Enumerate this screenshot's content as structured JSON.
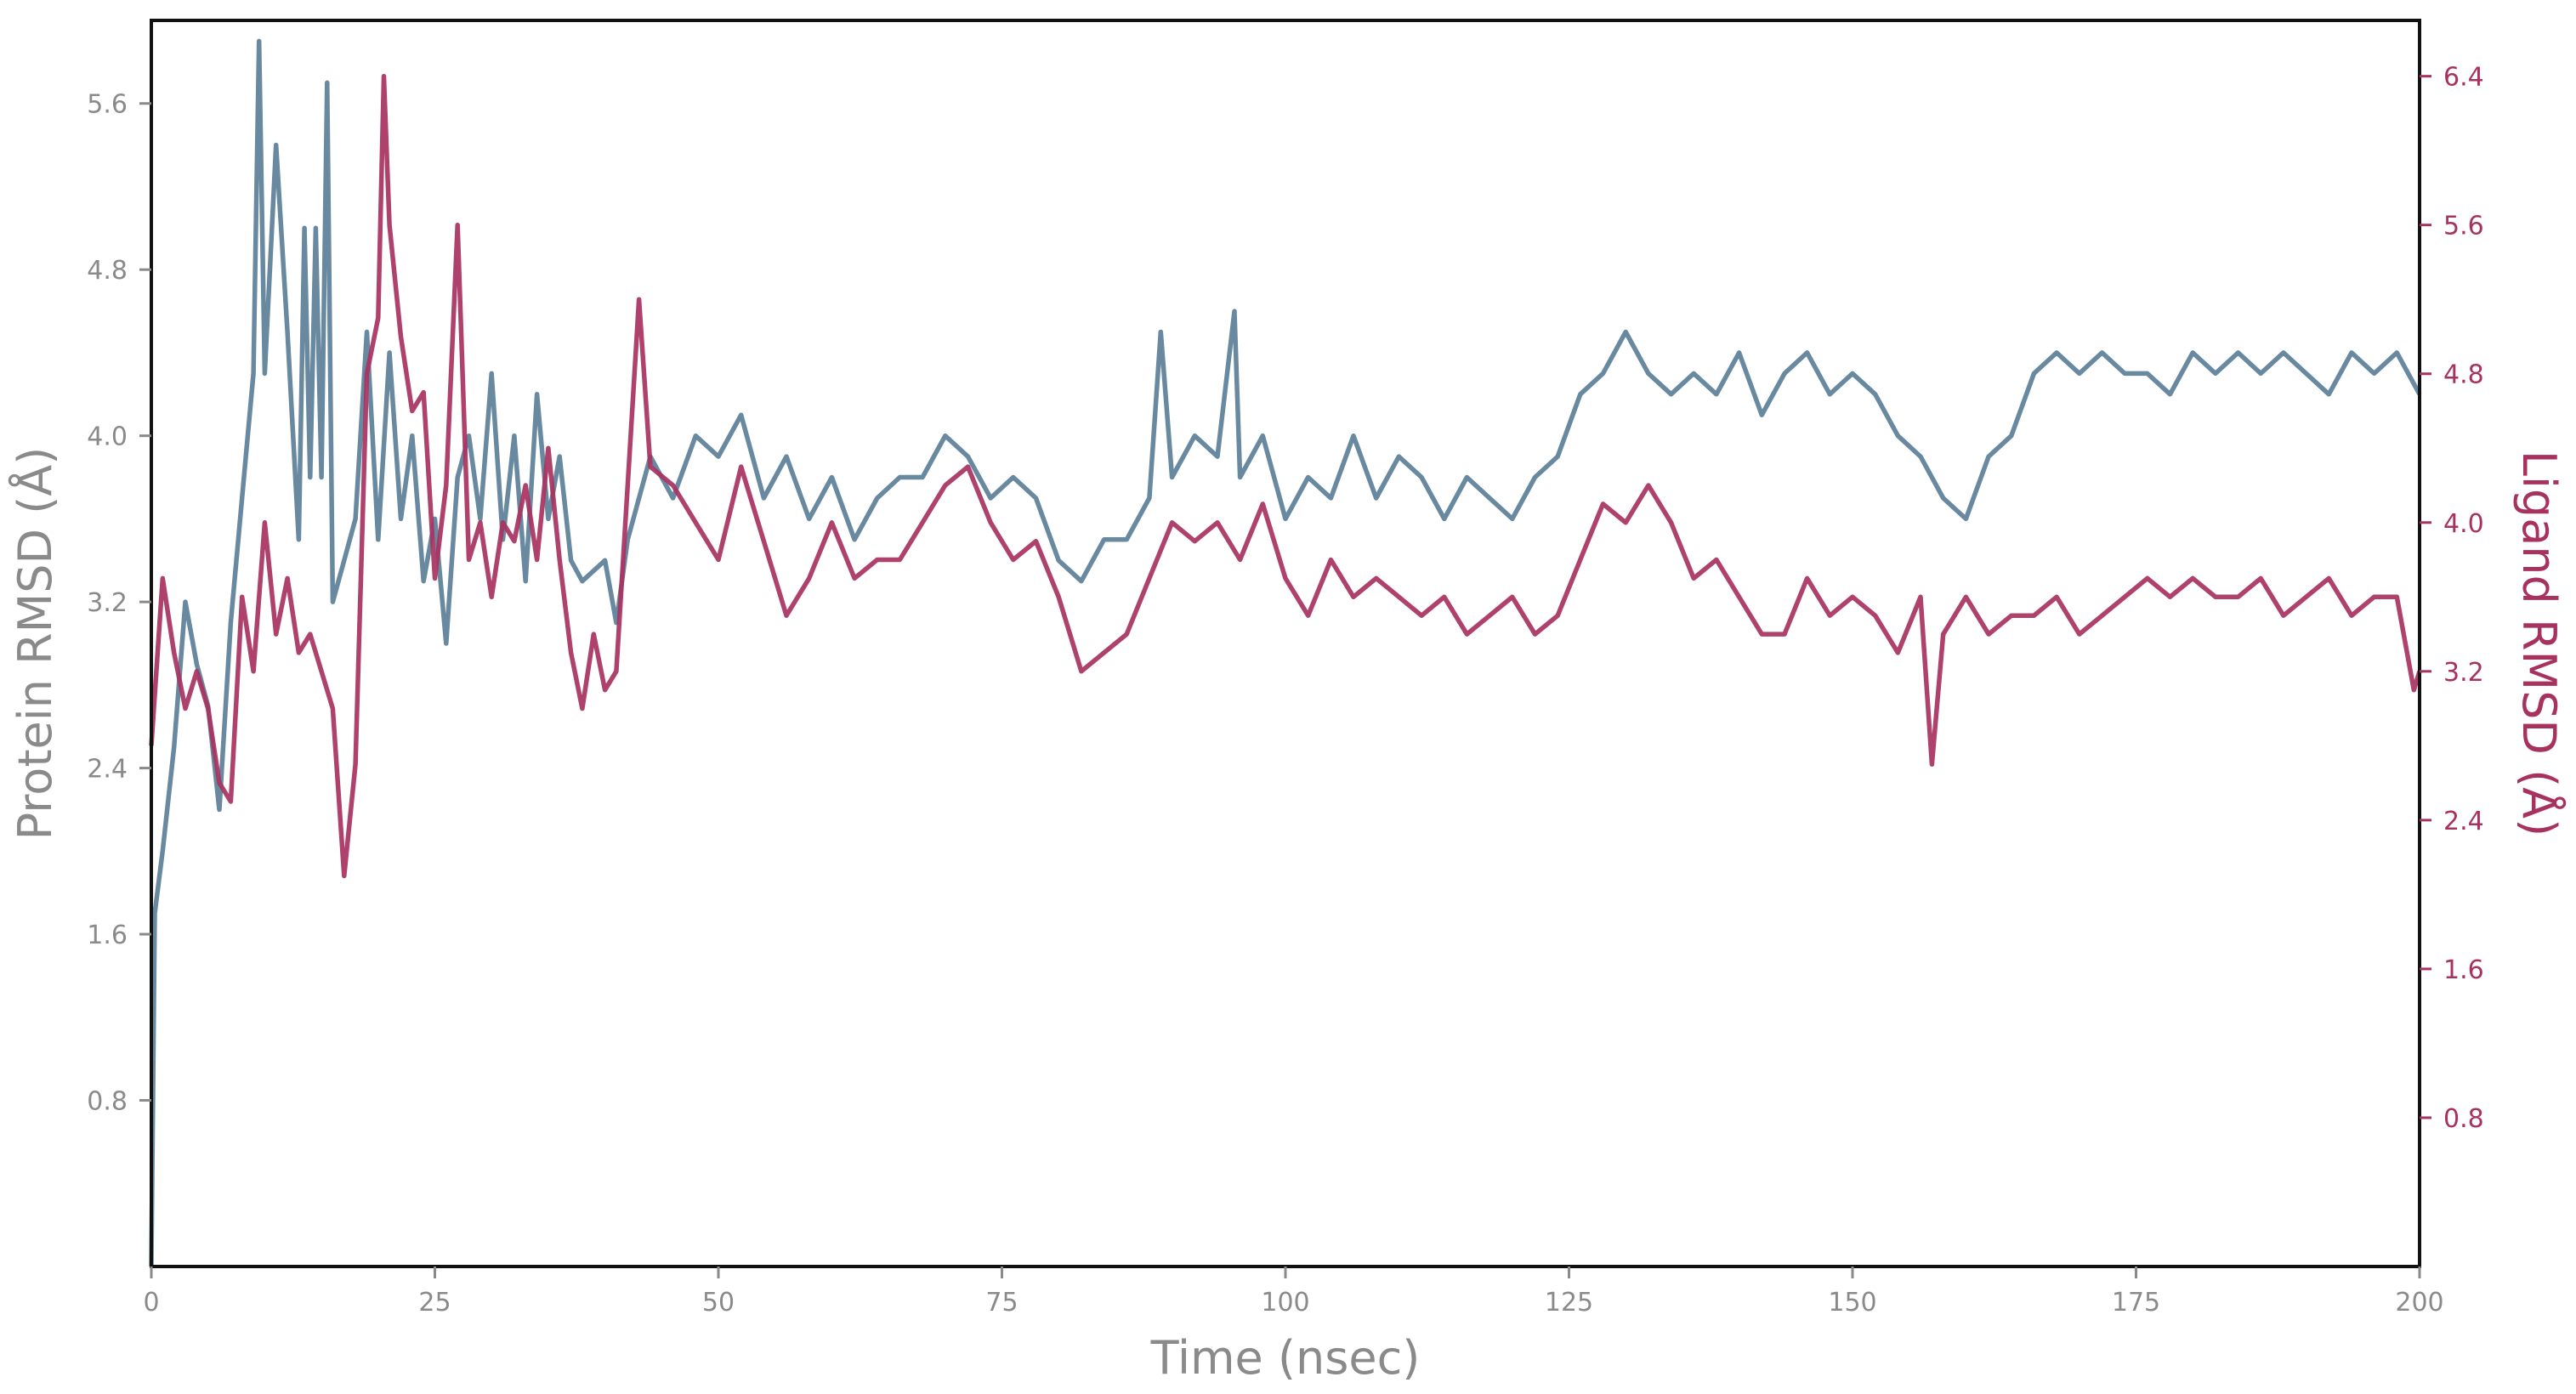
{
  "chart_data": {
    "type": "line",
    "x": {
      "label": "Time (nsec)",
      "range": [
        0,
        200
      ],
      "ticks": [
        0,
        25,
        50,
        75,
        100,
        125,
        150,
        175,
        200
      ],
      "tick_labels": [
        "0",
        "25",
        "50",
        "75",
        "100",
        "125",
        "150",
        "175",
        "200"
      ]
    },
    "y_left": {
      "label": "Protein RMSD (Å)",
      "range": [
        0,
        6.0
      ],
      "ticks": [
        0.8,
        1.6,
        2.4,
        3.2,
        4.0,
        4.8,
        5.6
      ],
      "tick_labels": [
        "0.8",
        "1.6",
        "2.4",
        "3.2",
        "4.0",
        "4.8",
        "5.6"
      ]
    },
    "y_right": {
      "label": "Ligand RMSD (Å)",
      "range": [
        0,
        6.7
      ],
      "ticks": [
        0.8,
        1.6,
        2.4,
        3.2,
        4.0,
        4.8,
        5.6,
        6.4
      ],
      "tick_labels": [
        "0.8",
        "1.6",
        "2.4",
        "3.2",
        "4.0",
        "4.8",
        "5.6",
        "6.4"
      ]
    },
    "grid": false,
    "legend": "none",
    "series": [
      {
        "axis": "left",
        "color": "#5b7f98",
        "points": [
          [
            0,
            0.0
          ],
          [
            0.3,
            1.7
          ],
          [
            1,
            2.0
          ],
          [
            2,
            2.5
          ],
          [
            3,
            3.2
          ],
          [
            4,
            2.9
          ],
          [
            5,
            2.7
          ],
          [
            6,
            2.2
          ],
          [
            7,
            3.1
          ],
          [
            8,
            3.7
          ],
          [
            9,
            4.3
          ],
          [
            9.5,
            5.9
          ],
          [
            10,
            4.3
          ],
          [
            11,
            5.4
          ],
          [
            12,
            4.5
          ],
          [
            13,
            3.5
          ],
          [
            13.5,
            5.0
          ],
          [
            14,
            3.8
          ],
          [
            14.5,
            5.0
          ],
          [
            15,
            3.8
          ],
          [
            15.5,
            5.7
          ],
          [
            16,
            3.2
          ],
          [
            17,
            3.4
          ],
          [
            18,
            3.6
          ],
          [
            19,
            4.5
          ],
          [
            20,
            3.5
          ],
          [
            21,
            4.4
          ],
          [
            22,
            3.6
          ],
          [
            23,
            4.0
          ],
          [
            24,
            3.3
          ],
          [
            25,
            3.6
          ],
          [
            26,
            3.0
          ],
          [
            27,
            3.8
          ],
          [
            28,
            4.0
          ],
          [
            29,
            3.6
          ],
          [
            30,
            4.3
          ],
          [
            31,
            3.5
          ],
          [
            32,
            4.0
          ],
          [
            33,
            3.3
          ],
          [
            34,
            4.2
          ],
          [
            35,
            3.6
          ],
          [
            36,
            3.9
          ],
          [
            37,
            3.4
          ],
          [
            38,
            3.3
          ],
          [
            40,
            3.4
          ],
          [
            41,
            3.1
          ],
          [
            42,
            3.5
          ],
          [
            44,
            3.9
          ],
          [
            46,
            3.7
          ],
          [
            48,
            4.0
          ],
          [
            50,
            3.9
          ],
          [
            52,
            4.1
          ],
          [
            54,
            3.7
          ],
          [
            56,
            3.9
          ],
          [
            58,
            3.6
          ],
          [
            60,
            3.8
          ],
          [
            62,
            3.5
          ],
          [
            64,
            3.7
          ],
          [
            66,
            3.8
          ],
          [
            68,
            3.8
          ],
          [
            70,
            4.0
          ],
          [
            72,
            3.9
          ],
          [
            74,
            3.7
          ],
          [
            76,
            3.8
          ],
          [
            78,
            3.7
          ],
          [
            80,
            3.4
          ],
          [
            82,
            3.3
          ],
          [
            84,
            3.5
          ],
          [
            86,
            3.5
          ],
          [
            88,
            3.7
          ],
          [
            89,
            4.5
          ],
          [
            90,
            3.8
          ],
          [
            92,
            4.0
          ],
          [
            94,
            3.9
          ],
          [
            95.5,
            4.6
          ],
          [
            96,
            3.8
          ],
          [
            98,
            4.0
          ],
          [
            100,
            3.6
          ],
          [
            102,
            3.8
          ],
          [
            104,
            3.7
          ],
          [
            106,
            4.0
          ],
          [
            108,
            3.7
          ],
          [
            110,
            3.9
          ],
          [
            112,
            3.8
          ],
          [
            114,
            3.6
          ],
          [
            116,
            3.8
          ],
          [
            118,
            3.7
          ],
          [
            120,
            3.6
          ],
          [
            122,
            3.8
          ],
          [
            124,
            3.9
          ],
          [
            126,
            4.2
          ],
          [
            128,
            4.3
          ],
          [
            130,
            4.5
          ],
          [
            132,
            4.3
          ],
          [
            134,
            4.2
          ],
          [
            136,
            4.3
          ],
          [
            138,
            4.2
          ],
          [
            140,
            4.4
          ],
          [
            142,
            4.1
          ],
          [
            144,
            4.3
          ],
          [
            146,
            4.4
          ],
          [
            148,
            4.2
          ],
          [
            150,
            4.3
          ],
          [
            152,
            4.2
          ],
          [
            154,
            4.0
          ],
          [
            156,
            3.9
          ],
          [
            158,
            3.7
          ],
          [
            160,
            3.6
          ],
          [
            162,
            3.9
          ],
          [
            164,
            4.0
          ],
          [
            166,
            4.3
          ],
          [
            168,
            4.4
          ],
          [
            170,
            4.3
          ],
          [
            172,
            4.4
          ],
          [
            174,
            4.3
          ],
          [
            176,
            4.3
          ],
          [
            178,
            4.2
          ],
          [
            180,
            4.4
          ],
          [
            182,
            4.3
          ],
          [
            184,
            4.4
          ],
          [
            186,
            4.3
          ],
          [
            188,
            4.4
          ],
          [
            190,
            4.3
          ],
          [
            192,
            4.2
          ],
          [
            194,
            4.4
          ],
          [
            196,
            4.3
          ],
          [
            198,
            4.4
          ],
          [
            200,
            4.2
          ]
        ]
      },
      {
        "axis": "right",
        "color": "#a8325f",
        "points": [
          [
            0,
            2.8
          ],
          [
            1,
            3.7
          ],
          [
            2,
            3.3
          ],
          [
            3,
            3.0
          ],
          [
            4,
            3.2
          ],
          [
            5,
            3.0
          ],
          [
            6,
            2.6
          ],
          [
            7,
            2.5
          ],
          [
            8,
            3.6
          ],
          [
            9,
            3.2
          ],
          [
            10,
            4.0
          ],
          [
            11,
            3.4
          ],
          [
            12,
            3.7
          ],
          [
            13,
            3.3
          ],
          [
            14,
            3.4
          ],
          [
            15,
            3.2
          ],
          [
            16,
            3.0
          ],
          [
            17,
            2.1
          ],
          [
            18,
            2.7
          ],
          [
            19,
            4.8
          ],
          [
            20,
            5.1
          ],
          [
            20.5,
            6.4
          ],
          [
            21,
            5.6
          ],
          [
            22,
            5.0
          ],
          [
            23,
            4.6
          ],
          [
            24,
            4.7
          ],
          [
            25,
            3.7
          ],
          [
            26,
            4.2
          ],
          [
            27,
            5.6
          ],
          [
            28,
            3.8
          ],
          [
            29,
            4.0
          ],
          [
            30,
            3.6
          ],
          [
            31,
            4.0
          ],
          [
            32,
            3.9
          ],
          [
            33,
            4.2
          ],
          [
            34,
            3.8
          ],
          [
            35,
            4.4
          ],
          [
            36,
            3.8
          ],
          [
            37,
            3.3
          ],
          [
            38,
            3.0
          ],
          [
            39,
            3.4
          ],
          [
            40,
            3.1
          ],
          [
            41,
            3.2
          ],
          [
            42,
            4.2
          ],
          [
            43,
            5.2
          ],
          [
            44,
            4.3
          ],
          [
            46,
            4.2
          ],
          [
            48,
            4.0
          ],
          [
            50,
            3.8
          ],
          [
            52,
            4.3
          ],
          [
            54,
            3.9
          ],
          [
            56,
            3.5
          ],
          [
            58,
            3.7
          ],
          [
            60,
            4.0
          ],
          [
            62,
            3.7
          ],
          [
            64,
            3.8
          ],
          [
            66,
            3.8
          ],
          [
            68,
            4.0
          ],
          [
            70,
            4.2
          ],
          [
            72,
            4.3
          ],
          [
            74,
            4.0
          ],
          [
            76,
            3.8
          ],
          [
            78,
            3.9
          ],
          [
            80,
            3.6
          ],
          [
            82,
            3.2
          ],
          [
            84,
            3.3
          ],
          [
            86,
            3.4
          ],
          [
            88,
            3.7
          ],
          [
            90,
            4.0
          ],
          [
            92,
            3.9
          ],
          [
            94,
            4.0
          ],
          [
            96,
            3.8
          ],
          [
            98,
            4.1
          ],
          [
            100,
            3.7
          ],
          [
            102,
            3.5
          ],
          [
            104,
            3.8
          ],
          [
            106,
            3.6
          ],
          [
            108,
            3.7
          ],
          [
            110,
            3.6
          ],
          [
            112,
            3.5
          ],
          [
            114,
            3.6
          ],
          [
            116,
            3.4
          ],
          [
            118,
            3.5
          ],
          [
            120,
            3.6
          ],
          [
            122,
            3.4
          ],
          [
            124,
            3.5
          ],
          [
            126,
            3.8
          ],
          [
            128,
            4.1
          ],
          [
            130,
            4.0
          ],
          [
            132,
            4.2
          ],
          [
            134,
            4.0
          ],
          [
            136,
            3.7
          ],
          [
            138,
            3.8
          ],
          [
            140,
            3.6
          ],
          [
            142,
            3.4
          ],
          [
            144,
            3.4
          ],
          [
            146,
            3.7
          ],
          [
            148,
            3.5
          ],
          [
            150,
            3.6
          ],
          [
            152,
            3.5
          ],
          [
            154,
            3.3
          ],
          [
            156,
            3.6
          ],
          [
            157,
            2.7
          ],
          [
            158,
            3.4
          ],
          [
            160,
            3.6
          ],
          [
            162,
            3.4
          ],
          [
            164,
            3.5
          ],
          [
            166,
            3.5
          ],
          [
            168,
            3.6
          ],
          [
            170,
            3.4
          ],
          [
            172,
            3.5
          ],
          [
            174,
            3.6
          ],
          [
            176,
            3.7
          ],
          [
            178,
            3.6
          ],
          [
            180,
            3.7
          ],
          [
            182,
            3.6
          ],
          [
            184,
            3.6
          ],
          [
            186,
            3.7
          ],
          [
            188,
            3.5
          ],
          [
            190,
            3.6
          ],
          [
            192,
            3.7
          ],
          [
            194,
            3.5
          ],
          [
            196,
            3.6
          ],
          [
            198,
            3.6
          ],
          [
            199.5,
            3.1
          ],
          [
            200,
            3.2
          ]
        ]
      }
    ]
  },
  "colors": {
    "protein": "#5b7f98",
    "ligand": "#a8325f",
    "axis_text": "#8a8a8a",
    "frame": "#111111"
  }
}
